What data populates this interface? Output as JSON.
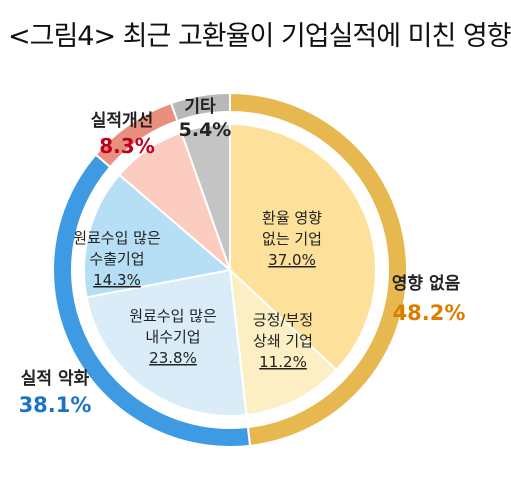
{
  "title": "<그림4> 최근 고환율이 기업실적에 미친 영향",
  "colors": {
    "no_effect_ring": "#E6B84F",
    "worse_ring": "#3D9AE3",
    "better_ring": "#E8907D",
    "other_ring": "#B8B8B8",
    "better_text": "#C0001A",
    "no_effect_text": "#DD7D00",
    "worse_text": "#1B73C5",
    "gap": "#FFFFFF"
  },
  "chart_data": {
    "type": "pie",
    "outer_ring": [
      {
        "name": "영향 없음",
        "value": 48.2,
        "label": "48.2%"
      },
      {
        "name": "실적 악화",
        "value": 38.1,
        "label": "38.1%"
      },
      {
        "name": "실적개선",
        "value": 8.3,
        "label": "8.3%"
      },
      {
        "name": "기타",
        "value": 5.4,
        "label": "5.4%"
      }
    ],
    "inner_slices": [
      {
        "lines": [
          "환율 영향",
          "없는 기업"
        ],
        "value": 37.0,
        "label": "37.0%",
        "color": "#FDE09A"
      },
      {
        "lines": [
          "긍정/부정",
          "상쇄 기업"
        ],
        "value": 11.2,
        "label": "11.2%",
        "color": "#FCEFC4"
      },
      {
        "lines": [
          "원료수입 많은",
          "내수기업"
        ],
        "value": 23.8,
        "label": "23.8%",
        "color": "#D9ECF8"
      },
      {
        "lines": [
          "원료수입 많은",
          "수출기업"
        ],
        "value": 14.3,
        "label": "14.3%",
        "color": "#B6DEF4"
      },
      {
        "lines": [],
        "value": 8.3,
        "label": "",
        "color": "#FCCCC0"
      },
      {
        "lines": [],
        "value": 5.4,
        "label": "",
        "color": "#C4C4C4"
      }
    ]
  }
}
